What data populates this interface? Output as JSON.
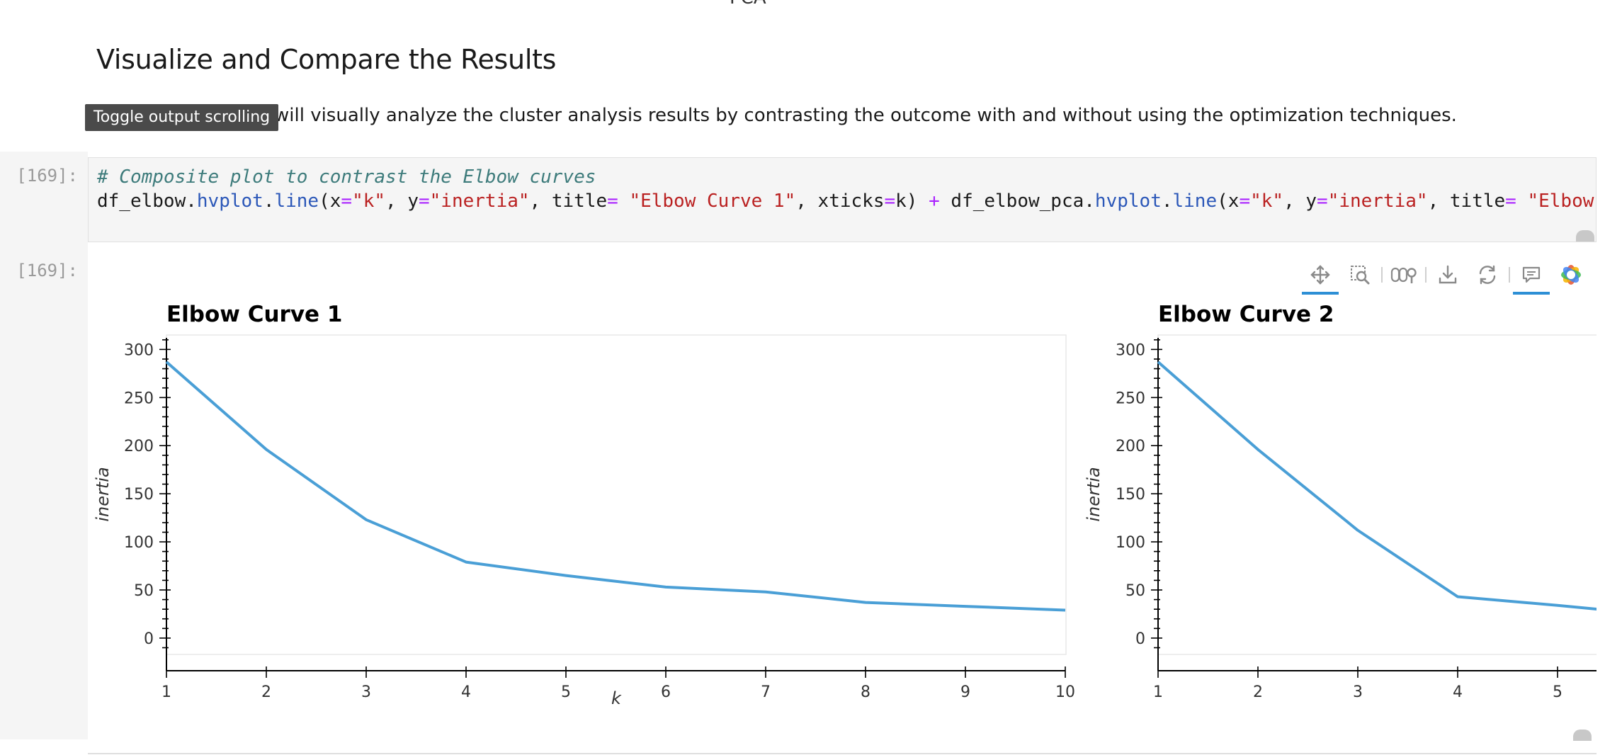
{
  "top_fragment": "PCA",
  "markdown": {
    "heading": "Visualize and Compare the Results",
    "paragraph": "will visually analyze the cluster analysis results by contrasting the outcome with and without using the optimization techniques."
  },
  "tooltip": "Toggle output scrolling",
  "code_cell": {
    "prompt": "[169]:",
    "comment": "# Composite plot to contrast the Elbow curves",
    "line2_tokens": [
      {
        "t": "df_elbow.",
        "c": ""
      },
      {
        "t": "hvplot",
        "c": "kw"
      },
      {
        "t": ".",
        "c": ""
      },
      {
        "t": "line",
        "c": "kw"
      },
      {
        "t": "(x",
        "c": ""
      },
      {
        "t": "=",
        "c": "op"
      },
      {
        "t": "\"k\"",
        "c": "str"
      },
      {
        "t": ", y",
        "c": ""
      },
      {
        "t": "=",
        "c": "op"
      },
      {
        "t": "\"inertia\"",
        "c": "str"
      },
      {
        "t": ", title",
        "c": ""
      },
      {
        "t": "=",
        "c": "op"
      },
      {
        "t": " ",
        "c": ""
      },
      {
        "t": "\"Elbow Curve 1\"",
        "c": "str"
      },
      {
        "t": ", xticks",
        "c": ""
      },
      {
        "t": "=",
        "c": "op"
      },
      {
        "t": "k) ",
        "c": ""
      },
      {
        "t": "+",
        "c": "op"
      },
      {
        "t": " df_elbow_pca.",
        "c": ""
      },
      {
        "t": "hvplot",
        "c": "kw"
      },
      {
        "t": ".",
        "c": ""
      },
      {
        "t": "line",
        "c": "kw"
      },
      {
        "t": "(x",
        "c": ""
      },
      {
        "t": "=",
        "c": "op"
      },
      {
        "t": "\"k\"",
        "c": "str"
      },
      {
        "t": ", y",
        "c": ""
      },
      {
        "t": "=",
        "c": "op"
      },
      {
        "t": "\"inertia\"",
        "c": "str"
      },
      {
        "t": ", title",
        "c": ""
      },
      {
        "t": "=",
        "c": "op"
      },
      {
        "t": " ",
        "c": ""
      },
      {
        "t": "\"Elbow",
        "c": "str"
      }
    ]
  },
  "output_cell": {
    "prompt": "[169]:"
  },
  "toolbar": {
    "tools": [
      {
        "name": "pan-icon",
        "active": true
      },
      {
        "name": "box-zoom-icon",
        "active": false
      },
      {
        "name": "wheel-zoom-icon",
        "active": false
      },
      {
        "name": "save-icon",
        "active": false
      },
      {
        "name": "reset-icon",
        "active": false
      },
      {
        "name": "hover-icon",
        "active": true
      },
      {
        "name": "bokeh-logo-icon",
        "active": false
      }
    ]
  },
  "chart_data": [
    {
      "type": "line",
      "title": "Elbow Curve 1",
      "xlabel": "k",
      "ylabel": "inertia",
      "x": [
        1,
        2,
        3,
        4,
        5,
        6,
        7,
        8,
        9,
        10
      ],
      "values": [
        287,
        196,
        123,
        79,
        65,
        53,
        48,
        37,
        33,
        29
      ],
      "xlim": [
        1,
        10
      ],
      "ylim": [
        -17,
        315
      ],
      "yticks": [
        0,
        50,
        100,
        150,
        200,
        250,
        300
      ],
      "xticks": [
        1,
        2,
        3,
        4,
        5,
        6,
        7,
        8,
        9,
        10
      ],
      "grid": false,
      "color": "#4a9fd6"
    },
    {
      "type": "line",
      "title": "Elbow Curve 2",
      "xlabel": "",
      "ylabel": "inertia",
      "x": [
        1,
        2,
        3,
        4,
        5,
        5.4
      ],
      "values": [
        287,
        196,
        112,
        43,
        34,
        30
      ],
      "xlim": [
        1,
        10
      ],
      "ylim": [
        -17,
        315
      ],
      "yticks": [
        0,
        50,
        100,
        150,
        200,
        250,
        300
      ],
      "xticks": [
        1,
        2,
        3,
        4,
        5
      ],
      "grid": false,
      "color": "#4a9fd6"
    }
  ]
}
